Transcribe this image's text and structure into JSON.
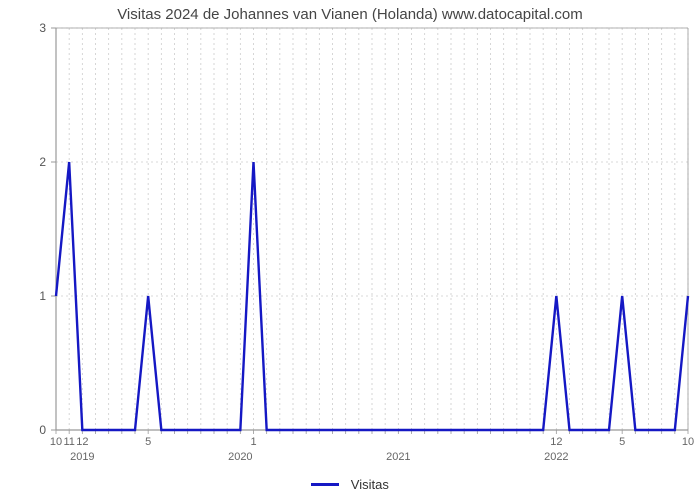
{
  "chart": {
    "type": "line",
    "title": "Visitas 2024 de Johannes van Vianen (Holanda) www.datocapital.com",
    "title_fontsize": 15,
    "title_color": "#454545",
    "background_color": "#ffffff",
    "plot_background": "#ffffff",
    "grid_color": "#cccccc",
    "grid_dash": "2,3",
    "border_color": "#999999",
    "line_color": "#1518c4",
    "line_width": 2.4,
    "y_axis": {
      "min": 0,
      "max": 3,
      "ticks": [
        0,
        1,
        2,
        3
      ],
      "tick_labels": [
        "0",
        "1",
        "2",
        "3"
      ],
      "label_fontsize": 12,
      "label_color": "#555555"
    },
    "x_axis": {
      "month_ticks_every": 1,
      "month_labels_visible": [
        "10",
        "11",
        "12",
        "5",
        "1",
        "12",
        "5",
        "10"
      ],
      "year_labels": [
        {
          "label": "2019",
          "month_index": 2
        },
        {
          "label": "2020",
          "month_index": 14
        },
        {
          "label": "2021",
          "month_index": 26
        },
        {
          "label": "2022",
          "month_index": 38
        }
      ],
      "label_fontsize": 11,
      "label_color": "#666666"
    },
    "data_points": [
      {
        "x": 0,
        "y": 1
      },
      {
        "x": 1,
        "y": 2
      },
      {
        "x": 2,
        "y": 0
      },
      {
        "x": 3,
        "y": 0
      },
      {
        "x": 4,
        "y": 0
      },
      {
        "x": 5,
        "y": 0
      },
      {
        "x": 6,
        "y": 0
      },
      {
        "x": 7,
        "y": 1
      },
      {
        "x": 8,
        "y": 0
      },
      {
        "x": 9,
        "y": 0
      },
      {
        "x": 10,
        "y": 0
      },
      {
        "x": 11,
        "y": 0
      },
      {
        "x": 12,
        "y": 0
      },
      {
        "x": 13,
        "y": 0
      },
      {
        "x": 14,
        "y": 0
      },
      {
        "x": 15,
        "y": 2
      },
      {
        "x": 16,
        "y": 0
      },
      {
        "x": 17,
        "y": 0
      },
      {
        "x": 18,
        "y": 0
      },
      {
        "x": 19,
        "y": 0
      },
      {
        "x": 20,
        "y": 0
      },
      {
        "x": 21,
        "y": 0
      },
      {
        "x": 22,
        "y": 0
      },
      {
        "x": 23,
        "y": 0
      },
      {
        "x": 24,
        "y": 0
      },
      {
        "x": 25,
        "y": 0
      },
      {
        "x": 26,
        "y": 0
      },
      {
        "x": 27,
        "y": 0
      },
      {
        "x": 28,
        "y": 0
      },
      {
        "x": 29,
        "y": 0
      },
      {
        "x": 30,
        "y": 0
      },
      {
        "x": 31,
        "y": 0
      },
      {
        "x": 32,
        "y": 0
      },
      {
        "x": 33,
        "y": 0
      },
      {
        "x": 34,
        "y": 0
      },
      {
        "x": 35,
        "y": 0
      },
      {
        "x": 36,
        "y": 0
      },
      {
        "x": 37,
        "y": 0
      },
      {
        "x": 38,
        "y": 1
      },
      {
        "x": 39,
        "y": 0
      },
      {
        "x": 40,
        "y": 0
      },
      {
        "x": 41,
        "y": 0
      },
      {
        "x": 42,
        "y": 0
      },
      {
        "x": 43,
        "y": 1
      },
      {
        "x": 44,
        "y": 0
      },
      {
        "x": 45,
        "y": 0
      },
      {
        "x": 46,
        "y": 0
      },
      {
        "x": 47,
        "y": 0
      },
      {
        "x": 48,
        "y": 1
      }
    ],
    "x_domain_max": 48,
    "month_tick_labels": [
      {
        "x": 0,
        "label": "10"
      },
      {
        "x": 1,
        "label": "11"
      },
      {
        "x": 2,
        "label": "12"
      },
      {
        "x": 7,
        "label": "5"
      },
      {
        "x": 15,
        "label": "1"
      },
      {
        "x": 38,
        "label": "12"
      },
      {
        "x": 43,
        "label": "5"
      },
      {
        "x": 48,
        "label": "10"
      }
    ],
    "legend": {
      "label": "Visitas",
      "color": "#1518c4",
      "swatch_width": 28,
      "swatch_height": 3,
      "fontsize": 13
    }
  }
}
